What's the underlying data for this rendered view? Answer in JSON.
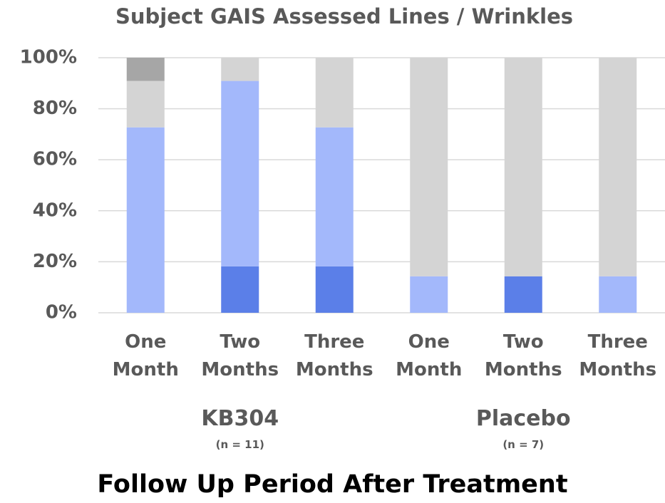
{
  "chart_data": {
    "type": "stacked_bar",
    "title": "Subject GAIS Assessed Lines / Wrinkles",
    "xlabel": "Follow Up Period After Treatment",
    "categories": [
      "One Month",
      "Two Months",
      "Three Months",
      "One Month",
      "Two Months",
      "Three Months"
    ],
    "groups": [
      {
        "label": "KB304",
        "note": "(n = 11)"
      },
      {
        "label": "Placebo",
        "note": "(n = 7)"
      }
    ],
    "series": [
      {
        "color": "#5b7fe8",
        "values": [
          0,
          18.2,
          18.2,
          0,
          14.3,
          0
        ]
      },
      {
        "color": "#a3b8fb",
        "values": [
          72.7,
          72.7,
          54.5,
          14.3,
          0,
          14.3
        ]
      },
      {
        "color": "#d4d4d4",
        "values": [
          18.2,
          9.1,
          27.3,
          85.7,
          85.7,
          85.7
        ]
      },
      {
        "color": "#a6a6a6",
        "values": [
          9.1,
          0,
          0,
          0,
          0,
          0
        ]
      }
    ],
    "ylim": [
      0,
      100
    ],
    "yticks": [
      {
        "value": 0,
        "label": "0%"
      },
      {
        "value": 20,
        "label": "20%"
      },
      {
        "value": 40,
        "label": "40%"
      },
      {
        "value": 60,
        "label": "60%"
      },
      {
        "value": 80,
        "label": "80%"
      },
      {
        "value": 100,
        "label": "100%"
      }
    ],
    "grid": true
  }
}
